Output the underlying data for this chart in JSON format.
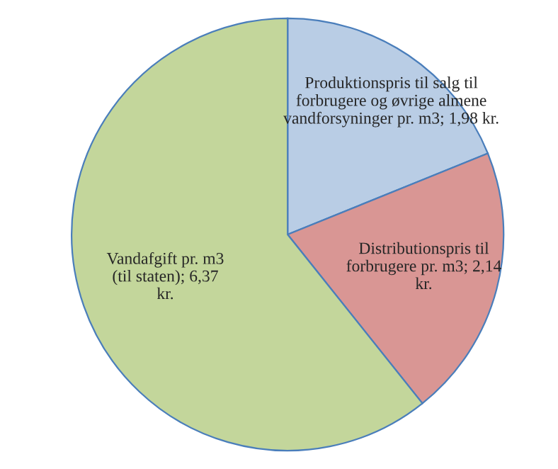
{
  "chart_data": {
    "type": "pie",
    "categories": [
      "Produktionspris til salg til forbrugere og øvrige almene vandforsyninger pr. m3; 1,98 kr.",
      "Distributionspris til forbrugere pr. m3; 2,14 kr.",
      "Vandafgift pr. m3 (til staten); 6,37 kr."
    ],
    "values": [
      1.98,
      2.14,
      6.37
    ],
    "colors": [
      "#b9cde5",
      "#d99694",
      "#c3d69b"
    ],
    "legend": false
  }
}
